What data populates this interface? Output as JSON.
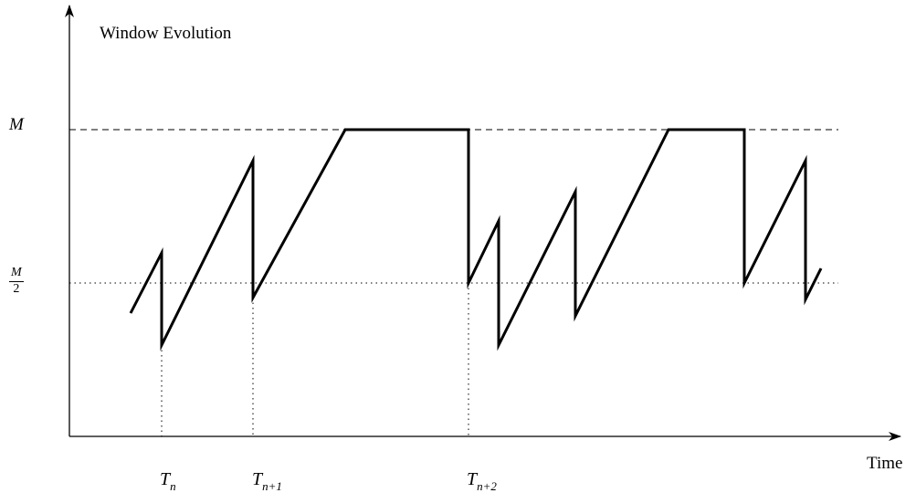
{
  "diagram": {
    "title": "Window Evolution",
    "x_axis_label": "Time",
    "y_level_max_label": "M",
    "y_level_half_numerator": "M",
    "y_level_half_denominator": "2",
    "time_marks": [
      {
        "base": "T",
        "subscript": "n"
      },
      {
        "base": "T",
        "subscript": "n+1"
      },
      {
        "base": "T",
        "subscript": "n+2"
      }
    ]
  },
  "colors": {
    "line": "#000000",
    "background": "#ffffff"
  }
}
